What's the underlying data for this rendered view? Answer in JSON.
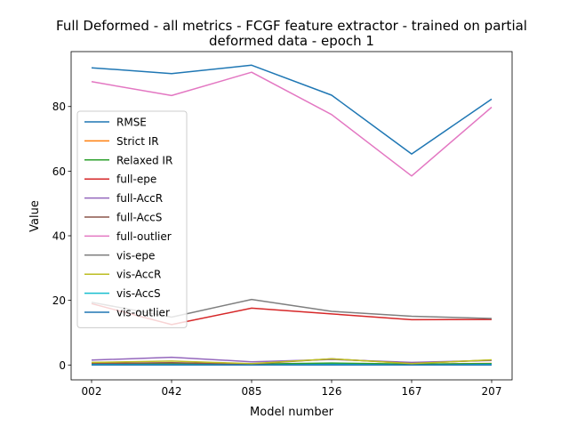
{
  "chart_data": {
    "type": "line",
    "title_lines": [
      "Full Deformed - all metrics - FCGF feature extractor -  trained on partial",
      "deformed data -  epoch 1"
    ],
    "xlabel": "Model number",
    "ylabel": "Value",
    "categories": [
      "002",
      "042",
      "085",
      "126",
      "167",
      "207"
    ],
    "ylim": [
      -4.6,
      97
    ],
    "yticks": [
      0,
      20,
      40,
      60,
      80
    ],
    "ytick_labels": [
      "0",
      "20",
      "40",
      "60",
      "80"
    ],
    "grid": false,
    "legend_position": "center-left",
    "series": [
      {
        "name": "RMSE",
        "color": "#1f77b4",
        "values": [
          92.0,
          90.2,
          92.8,
          83.5,
          65.3,
          82.3
        ]
      },
      {
        "name": "Strict IR",
        "color": "#ff7f0e",
        "values": [
          0.5,
          0.6,
          0.2,
          0.4,
          0.2,
          0.5
        ]
      },
      {
        "name": "Relaxed IR",
        "color": "#2ca02c",
        "values": [
          0.3,
          0.4,
          0.3,
          0.6,
          0.3,
          0.4
        ]
      },
      {
        "name": "full-epe",
        "color": "#d62728",
        "values": [
          19.0,
          12.5,
          17.6,
          15.8,
          14.0,
          14.1
        ]
      },
      {
        "name": "full-AccR",
        "color": "#9467bd",
        "values": [
          1.5,
          2.4,
          1.0,
          1.7,
          0.8,
          1.4
        ]
      },
      {
        "name": "full-AccS",
        "color": "#8c564b",
        "values": [
          0.5,
          0.7,
          0.3,
          1.9,
          0.5,
          1.5
        ]
      },
      {
        "name": "full-outlier",
        "color": "#e377c2",
        "values": [
          87.7,
          83.4,
          90.6,
          77.5,
          58.5,
          79.8
        ]
      },
      {
        "name": "vis-epe",
        "color": "#7f7f7f",
        "values": [
          19.4,
          14.8,
          20.3,
          16.6,
          15.1,
          14.4
        ]
      },
      {
        "name": "vis-AccR",
        "color": "#bcbd22",
        "values": [
          0.8,
          1.2,
          0.4,
          1.9,
          0.4,
          1.6
        ]
      },
      {
        "name": "vis-AccS",
        "color": "#17becf",
        "values": [
          0.1,
          0.1,
          0.0,
          0.2,
          0.0,
          0.2
        ]
      },
      {
        "name": "vis-outlier",
        "color": "#1f77b4",
        "values": [
          0.0,
          0.0,
          0.0,
          0.0,
          0.0,
          0.0
        ]
      }
    ]
  }
}
